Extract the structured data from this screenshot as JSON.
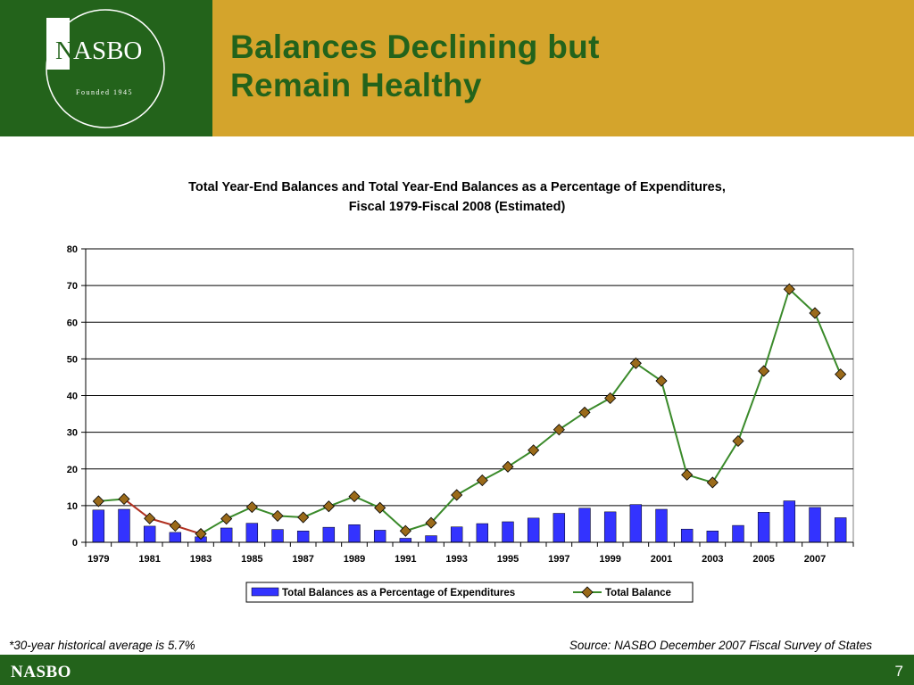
{
  "slide": {
    "title_lines": [
      "Balances Declining but",
      "Remain Healthy"
    ],
    "footnote": "*30-year historical average is 5.7%",
    "source": "Source: NASBO December 2007 Fiscal Survey of States",
    "footer_brand": "NASBO",
    "page_number": "7"
  },
  "logo": {
    "name": "NASBO",
    "tagline": "Founded 1945"
  },
  "colors": {
    "header_gold": "#d4a42c",
    "brand_green": "#23631b",
    "bar_blue": "#3333ff",
    "line_green": "#3a8a2a",
    "line_red": "#b03020",
    "marker_brown": "#9a6a1a"
  },
  "chart_data": {
    "type": "bar+line",
    "title_lines": [
      "Total Year-End Balances and Total Year-End Balances as a Percentage of Expenditures,",
      "Fiscal 1979-Fiscal 2008 (Estimated)"
    ],
    "categories": [
      "1979",
      "1980",
      "1981",
      "1982",
      "1983",
      "1984",
      "1985",
      "1986",
      "1987",
      "1988",
      "1989",
      "1990",
      "1991",
      "1992",
      "1993",
      "1994",
      "1995",
      "1996",
      "1997",
      "1998",
      "1999",
      "2000",
      "2001",
      "2002",
      "2003",
      "2004",
      "2005",
      "2006",
      "2007",
      "2008"
    ],
    "x_tick_labels": [
      "1979",
      "",
      "1981",
      "",
      "1983",
      "",
      "1985",
      "",
      "1987",
      "",
      "1989",
      "",
      "1991",
      "",
      "1993",
      "",
      "1995",
      "",
      "1997",
      "",
      "1999",
      "",
      "2001",
      "",
      "2003",
      "",
      "2005",
      "",
      "2007",
      ""
    ],
    "ylim": [
      0,
      80
    ],
    "y_ticks": [
      0,
      10,
      20,
      30,
      40,
      50,
      60,
      70,
      80
    ],
    "grid": true,
    "legend_position": "bottom",
    "series": [
      {
        "name": "Total Balances as a Percentage of Expenditures",
        "type": "bar",
        "values": [
          8.8,
          9.0,
          4.4,
          2.7,
          1.5,
          3.9,
          5.2,
          3.5,
          3.1,
          4.1,
          4.8,
          3.3,
          1.1,
          1.8,
          4.2,
          5.1,
          5.6,
          6.6,
          7.9,
          9.3,
          8.3,
          10.3,
          9.0,
          3.6,
          3.1,
          4.6,
          8.2,
          11.3,
          9.5,
          6.7
        ]
      },
      {
        "name": "Total Balance",
        "type": "line",
        "values": [
          11.2,
          11.8,
          6.5,
          4.5,
          2.3,
          6.4,
          9.6,
          7.2,
          6.8,
          9.8,
          12.5,
          9.4,
          3.1,
          5.3,
          12.9,
          16.9,
          20.6,
          25.1,
          30.7,
          35.4,
          39.3,
          48.8,
          44.0,
          18.4,
          16.3,
          27.6,
          46.7,
          69.0,
          62.5,
          45.8
        ]
      }
    ]
  }
}
